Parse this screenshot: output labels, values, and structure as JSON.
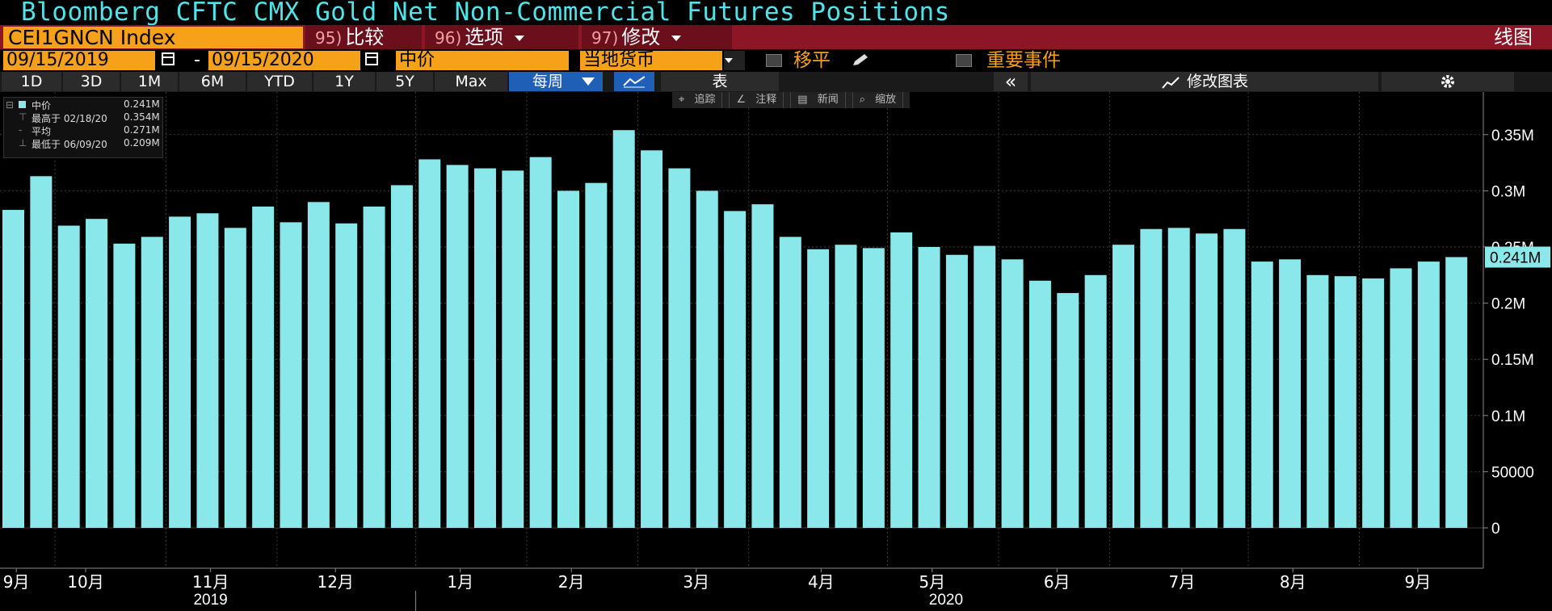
{
  "title": "Bloomberg CFTC CMX Gold Net Non-Commercial Futures Positions",
  "ticker": "CEI1GNCN Index",
  "menus": [
    {
      "num": "95)",
      "label": "比较"
    },
    {
      "num": "96)",
      "label": "选项"
    },
    {
      "num": "97)",
      "label": "修改"
    }
  ],
  "chart_type_label": "线图",
  "date_start": "09/15/2019",
  "date_sep": "-",
  "date_end": "09/15/2020",
  "price_field": "中价",
  "currency": "当地货币",
  "shift_label": "移平",
  "events_label": "重要事件",
  "periods": [
    "1D",
    "3D",
    "1M",
    "6M",
    "YTD",
    "1Y",
    "5Y",
    "Max"
  ],
  "frequency": "每周",
  "table_label": "表",
  "collapse_label": "«",
  "edit_chart_label": "修改图表",
  "toolbar": [
    "追踪",
    "注释",
    "新闻",
    "缩放"
  ],
  "legend": {
    "series_name": "中价",
    "series_value": "0.241M",
    "high_label": "最高于 02/18/20",
    "high_value": "0.354M",
    "avg_label": "平均",
    "avg_value": "0.271M",
    "low_label": "最低于 06/09/20",
    "low_value": "0.209M"
  },
  "last_value_label": "0.241M",
  "colors": {
    "bar": "#8ae8ea",
    "title": "#4fe3ea",
    "orange": "#f7a11b",
    "menubar": "#8c1626",
    "grid": "#3a3a3a",
    "background": "#000000"
  },
  "chart_data": {
    "type": "bar",
    "title": "Bloomberg CFTC CMX Gold Net Non-Commercial Futures Positions",
    "series": [
      {
        "name": "中价",
        "values": [
          0.283,
          0.313,
          0.269,
          0.275,
          0.253,
          0.259,
          0.277,
          0.28,
          0.267,
          0.286,
          0.272,
          0.29,
          0.271,
          0.286,
          0.305,
          0.328,
          0.323,
          0.32,
          0.318,
          0.33,
          0.3,
          0.307,
          0.354,
          0.336,
          0.32,
          0.3,
          0.282,
          0.288,
          0.259,
          0.248,
          0.252,
          0.249,
          0.263,
          0.25,
          0.243,
          0.251,
          0.239,
          0.22,
          0.209,
          0.225,
          0.252,
          0.266,
          0.267,
          0.262,
          0.266,
          0.237,
          0.239,
          0.225,
          0.224,
          0.222,
          0.231,
          0.237,
          0.241
        ]
      }
    ],
    "unit": "M",
    "ylim": [
      -0.035,
      0.385
    ],
    "y_ticks": [
      {
        "value": 0.35,
        "label": "0.35M"
      },
      {
        "value": 0.3,
        "label": "0.3M"
      },
      {
        "value": 0.25,
        "label": "0.25M"
      },
      {
        "value": 0.2,
        "label": "0.2M"
      },
      {
        "value": 0.15,
        "label": "0.15M"
      },
      {
        "value": 0.1,
        "label": "0.1M"
      },
      {
        "value": 0.05,
        "label": "50000"
      },
      {
        "value": 0.0,
        "label": "0"
      }
    ],
    "month_labels": [
      {
        "label": "9月",
        "bar": 0.5
      },
      {
        "label": "10月",
        "bar": 3.0
      },
      {
        "label": "11月",
        "bar": 7.5
      },
      {
        "label": "12月",
        "bar": 12.0
      },
      {
        "label": "1月",
        "bar": 16.5
      },
      {
        "label": "2月",
        "bar": 20.5
      },
      {
        "label": "3月",
        "bar": 25.0
      },
      {
        "label": "4月",
        "bar": 29.5
      },
      {
        "label": "5月",
        "bar": 33.5
      },
      {
        "label": "6月",
        "bar": 38.0
      },
      {
        "label": "7月",
        "bar": 42.5
      },
      {
        "label": "8月",
        "bar": 46.5
      },
      {
        "label": "9月",
        "bar": 51.0
      }
    ],
    "month_boundaries": [
      2,
      6,
      10,
      15,
      19,
      23,
      27,
      32,
      36,
      40,
      45,
      49
    ],
    "year_labels": [
      {
        "label": "2019",
        "bar": 7.5
      },
      {
        "label": "2020",
        "bar": 34.0
      }
    ],
    "year_boundary": 15,
    "grid": true,
    "legend": "top-left"
  }
}
